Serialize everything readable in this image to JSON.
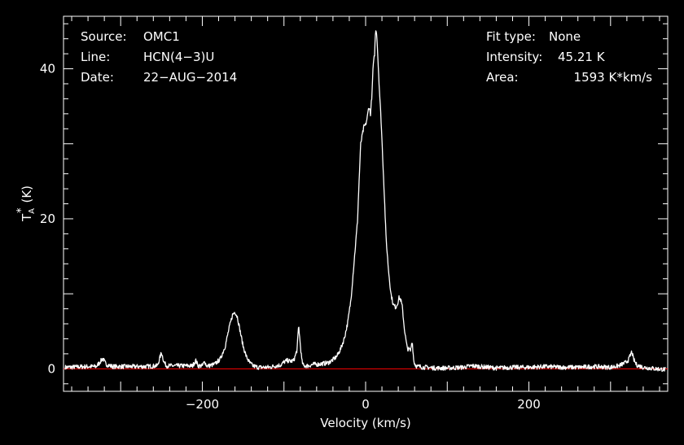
{
  "chart_data": {
    "type": "line",
    "title": "",
    "xlabel": "Velocity (km/s)",
    "ylabel": {
      "main": "T",
      "sup": "*",
      "sub": "A",
      "unit": "(K)"
    },
    "xlim": [
      -370,
      370
    ],
    "ylim": [
      -3,
      47
    ],
    "x_ticks": [
      -200,
      0,
      200
    ],
    "x_tick_labels": [
      "−200",
      "0",
      "200"
    ],
    "y_ticks": [
      0,
      20,
      40
    ],
    "y_tick_labels": [
      "0",
      "20",
      "40"
    ],
    "grid": false,
    "baseline": {
      "y": 0,
      "color": "#ff0000"
    },
    "line_color": "#ffffff",
    "info_left": [
      {
        "key": "Source:",
        "value": "OMC1"
      },
      {
        "key": "Line:",
        "value": "HCN(4−3)U"
      },
      {
        "key": "Date:",
        "value": "22−AUG−2014"
      }
    ],
    "info_right": [
      {
        "key": "Fit type:",
        "value": "None"
      },
      {
        "key": "Intensity:",
        "value": "45.21 K"
      },
      {
        "key": "Area:",
        "value": "1593 K*km/s"
      }
    ],
    "series": [
      {
        "x": [
          -368,
          -340,
          -330,
          -326,
          -322,
          -318,
          -310,
          -290,
          -270,
          -255,
          -250,
          -247,
          -244,
          -240,
          -225,
          -212,
          -208,
          -205,
          -200,
          -197,
          -195,
          -192,
          -185,
          -178,
          -172,
          -167,
          -163,
          -160,
          -157,
          -154,
          -150,
          -146,
          -142,
          -138,
          -132,
          -125,
          -118,
          -110,
          -104,
          -100,
          -96,
          -92,
          -88,
          -84,
          -82,
          -80,
          -78,
          -76,
          -74,
          -70,
          -64,
          -58,
          -52,
          -46,
          -40,
          -35,
          -30,
          -26,
          -22,
          -18,
          -14,
          -10,
          -8,
          -6,
          -4,
          -2,
          0,
          2,
          4,
          6,
          8,
          9,
          11,
          12,
          13,
          14,
          15,
          17,
          19,
          21,
          23,
          25,
          28,
          31,
          34,
          37,
          39,
          41,
          43,
          45,
          47,
          49,
          51,
          53,
          55,
          57,
          59,
          61,
          63,
          65,
          67,
          70,
          75,
          85,
          100,
          120,
          130,
          140,
          160,
          180,
          200,
          220,
          240,
          260,
          280,
          300,
          310,
          318,
          322,
          326,
          328,
          332,
          340,
          355,
          368
        ],
        "y": [
          0.2,
          0.3,
          0.3,
          0.8,
          1.4,
          0.6,
          0.3,
          0.3,
          0.3,
          0.4,
          2.2,
          0.9,
          0.4,
          0.4,
          0.4,
          0.4,
          1.1,
          0.4,
          0.4,
          1.0,
          0.4,
          0.4,
          0.6,
          1.3,
          3.0,
          5.5,
          7.2,
          7.6,
          6.9,
          5.2,
          3.0,
          1.6,
          0.8,
          0.4,
          0.2,
          0.2,
          0.2,
          0.4,
          0.5,
          0.9,
          1.1,
          1.0,
          1.1,
          2.5,
          5.8,
          3.2,
          1.0,
          0.4,
          0.4,
          0.4,
          0.6,
          0.6,
          0.7,
          0.8,
          1.2,
          1.7,
          2.8,
          4.1,
          6.1,
          9.2,
          14.4,
          19.6,
          25.0,
          30.0,
          31.2,
          32.3,
          32.5,
          33.5,
          35.0,
          34.0,
          37.0,
          40.0,
          42.0,
          44.7,
          45.2,
          44.0,
          41.5,
          37.0,
          33.0,
          28.0,
          23.0,
          17.5,
          13.2,
          10.0,
          8.5,
          8.2,
          8.7,
          9.5,
          9.2,
          8.2,
          5.8,
          4.1,
          2.7,
          2.6,
          2.4,
          3.8,
          1.0,
          0.5,
          0.3,
          0.3,
          0.3,
          0.2,
          0.2,
          0.1,
          0.1,
          0.2,
          0.4,
          0.3,
          0.1,
          0.2,
          0.2,
          0.3,
          0.2,
          0.2,
          0.3,
          0.2,
          0.4,
          0.8,
          1.2,
          2.3,
          1.3,
          0.5,
          0.2,
          0.0,
          -0.1
        ]
      }
    ]
  }
}
